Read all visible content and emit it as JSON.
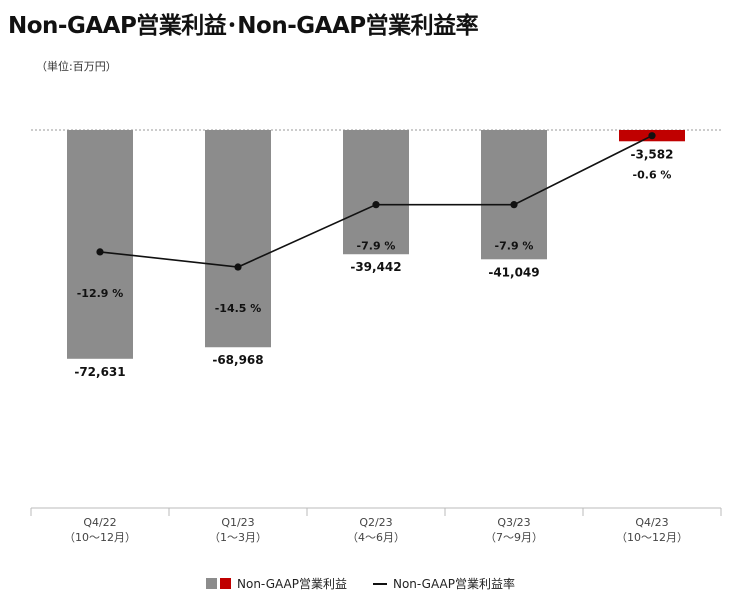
{
  "title": "Non-GAAP営業利益･Non-GAAP営業利益率",
  "unit": "（単位:百万円）",
  "legend": {
    "bar_label": "Non-GAAP営業利益",
    "line_label": "Non-GAAP営業利益率"
  },
  "colors": {
    "bar": "#8c8c8c",
    "bar_highlight": "#c00000",
    "line": "#111111"
  },
  "chart_data": {
    "type": "bar",
    "categories": [
      [
        "Q4/22",
        "（10～12月）"
      ],
      [
        "Q1/23",
        "（1～3月）"
      ],
      [
        "Q2/23",
        "（4～6月）"
      ],
      [
        "Q3/23",
        "（7～9月）"
      ],
      [
        "Q4/23",
        "（10～12月）"
      ]
    ],
    "series": [
      {
        "name": "Non-GAAP営業利益",
        "type": "bar",
        "values": [
          -72631,
          -68968,
          -39442,
          -41049,
          -3582
        ],
        "labels": [
          "-72,631",
          "-68,968",
          "-39,442",
          "-41,049",
          "-3,582"
        ]
      },
      {
        "name": "Non-GAAP営業利益率",
        "type": "line",
        "values": [
          -12.9,
          -14.5,
          -7.9,
          -7.9,
          -0.6
        ],
        "labels": [
          "-12.9 %",
          "-14.5 %",
          "-7.9 %",
          "-7.9 %",
          "-0.6 %"
        ]
      }
    ],
    "highlight_index": 4,
    "ylim": [
      -120000,
      0
    ],
    "y2lim": [
      -40,
      0
    ],
    "grid": false,
    "legend_position": "bottom"
  }
}
